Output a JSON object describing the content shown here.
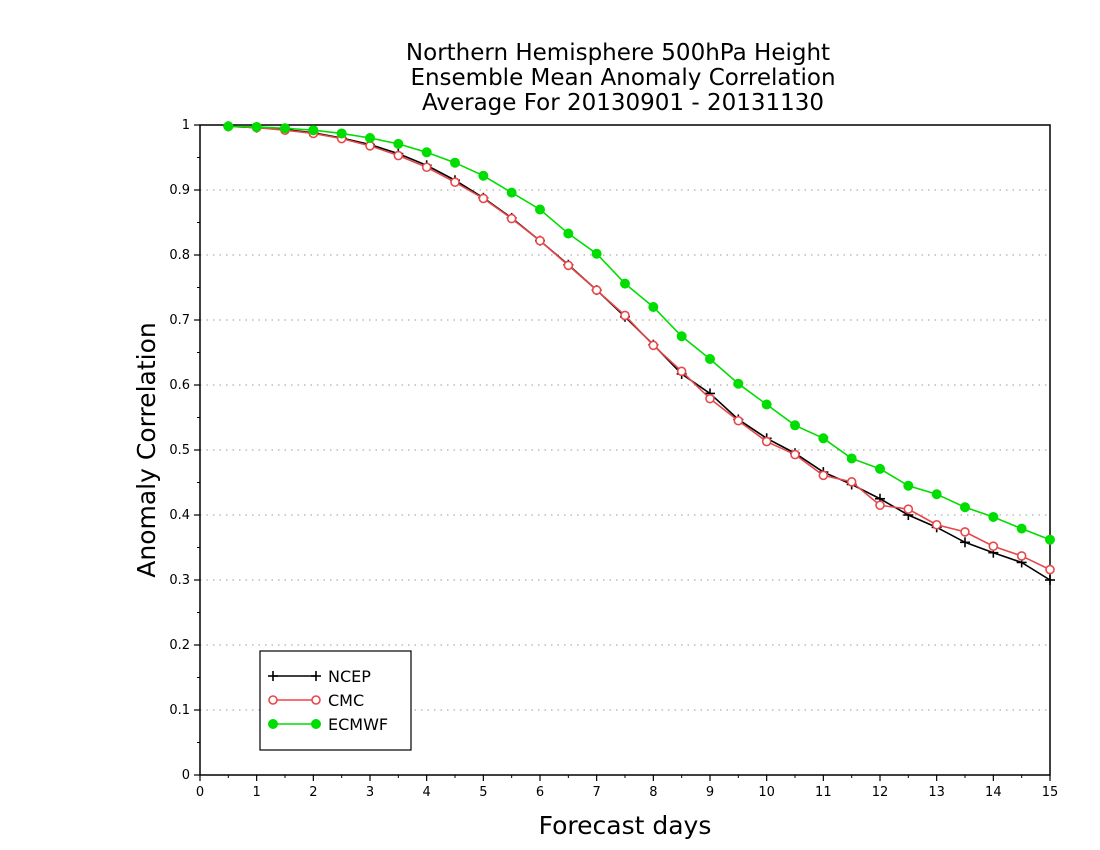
{
  "chart_data": {
    "type": "line",
    "title_lines": [
      "Northern Hemisphere 500hPa Height",
      "Ensemble Mean Anomaly Correlation",
      "Average For 20130901 - 20131130"
    ],
    "xlabel": "Forecast days",
    "ylabel": "Anomaly Correlation",
    "xlim": [
      0,
      15
    ],
    "ylim": [
      0,
      1
    ],
    "xticks": [
      "0",
      "1",
      "2",
      "3",
      "4",
      "5",
      "6",
      "7",
      "8",
      "9",
      "10",
      "11",
      "12",
      "13",
      "14",
      "15"
    ],
    "yticks": [
      "0",
      "0.1",
      "0.2",
      "0.3",
      "0.4",
      "0.5",
      "0.6",
      "0.7",
      "0.8",
      "0.9",
      "1"
    ],
    "grid": "horizontal dotted",
    "legend_position": "bottom-left",
    "x": [
      0.5,
      1,
      1.5,
      2,
      2.5,
      3,
      3.5,
      4,
      4.5,
      5,
      5.5,
      6,
      6.5,
      7,
      7.5,
      8,
      8.5,
      9,
      9.5,
      10,
      10.5,
      11,
      11.5,
      12,
      12.5,
      13,
      13.5,
      14,
      14.5,
      15
    ],
    "series": [
      {
        "name": "NCEP",
        "color": "#000000",
        "marker": "plus",
        "values": [
          0.998,
          0.996,
          0.993,
          0.988,
          0.98,
          0.97,
          0.956,
          0.938,
          0.915,
          0.888,
          0.857,
          0.822,
          0.785,
          0.746,
          0.705,
          0.662,
          0.617,
          0.587,
          0.547,
          0.518,
          0.495,
          0.466,
          0.447,
          0.425,
          0.4,
          0.381,
          0.358,
          0.342,
          0.327,
          0.3
        ]
      },
      {
        "name": "CMC",
        "color": "#e8474a",
        "marker": "open-circle",
        "values": [
          0.998,
          0.996,
          0.992,
          0.987,
          0.979,
          0.968,
          0.953,
          0.935,
          0.912,
          0.887,
          0.856,
          0.822,
          0.784,
          0.746,
          0.707,
          0.661,
          0.621,
          0.579,
          0.545,
          0.513,
          0.493,
          0.461,
          0.451,
          0.415,
          0.409,
          0.385,
          0.374,
          0.352,
          0.337,
          0.316
        ]
      },
      {
        "name": "ECMWF",
        "color": "#00dd00",
        "marker": "filled-circle",
        "values": [
          0.998,
          0.997,
          0.995,
          0.992,
          0.987,
          0.98,
          0.971,
          0.958,
          0.942,
          0.922,
          0.896,
          0.87,
          0.833,
          0.802,
          0.756,
          0.72,
          0.675,
          0.64,
          0.602,
          0.57,
          0.538,
          0.518,
          0.487,
          0.471,
          0.445,
          0.432,
          0.412,
          0.397,
          0.379,
          0.362
        ]
      }
    ]
  }
}
